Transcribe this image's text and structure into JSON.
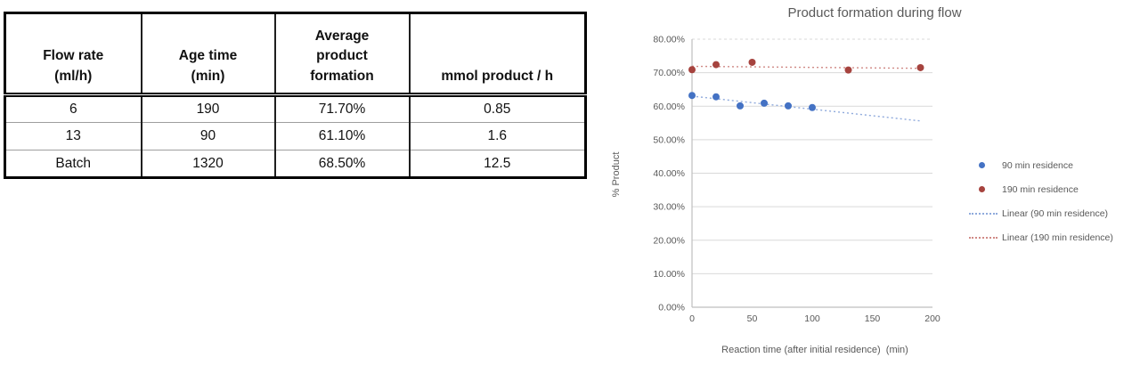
{
  "table": {
    "headers": [
      "Flow rate\n(ml/h)",
      "Age time\n(min)",
      "Average\nproduct\nformation",
      "mmol product / h"
    ],
    "rows": [
      [
        "6",
        "190",
        "71.70%",
        "0.85"
      ],
      [
        "13",
        "90",
        "61.10%",
        "1.6"
      ],
      [
        "Batch",
        "1320",
        "68.50%",
        "12.5"
      ]
    ]
  },
  "chart_data": {
    "type": "scatter",
    "title": "Product formation during flow",
    "xlabel": "Reaction time (after initial residence)  (min)",
    "ylabel": "% Product",
    "xlim": [
      0,
      200
    ],
    "ylim": [
      0,
      80
    ],
    "y_unit": "percent",
    "grid": true,
    "legend_position": "right",
    "x_ticks": [
      [
        0,
        "0"
      ],
      [
        50,
        "50"
      ],
      [
        100,
        "100"
      ],
      [
        150,
        "150"
      ],
      [
        200,
        "200"
      ]
    ],
    "y_ticks": [
      [
        80,
        "80.00%"
      ],
      [
        70,
        "70.00%"
      ],
      [
        60,
        "60.00%"
      ],
      [
        50,
        "50.00%"
      ],
      [
        40,
        "40.00%"
      ],
      [
        30,
        "30.00%"
      ],
      [
        20,
        "20.00%"
      ],
      [
        10,
        "10.00%"
      ],
      [
        0,
        "0.00%"
      ]
    ],
    "series": [
      {
        "name": "90 min residence",
        "color": "#4472C4",
        "marker": "circle",
        "points": [
          [
            0,
            63.2
          ],
          [
            20,
            62.8
          ],
          [
            40,
            60.1
          ],
          [
            60,
            60.9
          ],
          [
            80,
            60.1
          ],
          [
            100,
            59.6
          ]
        ]
      },
      {
        "name": "190 min residence",
        "color": "#A6433E",
        "marker": "circle",
        "points": [
          [
            0,
            70.9
          ],
          [
            20,
            72.4
          ],
          [
            50,
            73.1
          ],
          [
            130,
            70.8
          ],
          [
            190,
            71.5
          ]
        ]
      }
    ],
    "trendlines": [
      {
        "name": "Linear (90 min residence)",
        "color": "#8FAADC",
        "start": [
          0,
          63.0
        ],
        "end": [
          190,
          55.6
        ]
      },
      {
        "name": "Linear (190 min residence)",
        "color": "#D08A86",
        "start": [
          0,
          71.9
        ],
        "end": [
          190,
          71.3
        ]
      }
    ],
    "legend": [
      {
        "label": "90 min residence",
        "marker": "dot",
        "color": "#4472C4"
      },
      {
        "label": "190 min residence",
        "marker": "dot",
        "color": "#A6433E"
      },
      {
        "label": "Linear (90 min residence)",
        "marker": "dotted-line",
        "color": "#8FAADC"
      },
      {
        "label": "Linear (190 min residence)",
        "marker": "dotted-line",
        "color": "#D08A86"
      }
    ],
    "axis_color": "#BFBFBF",
    "gridline_color": "#D9D9D9",
    "text_color": "#595959"
  }
}
